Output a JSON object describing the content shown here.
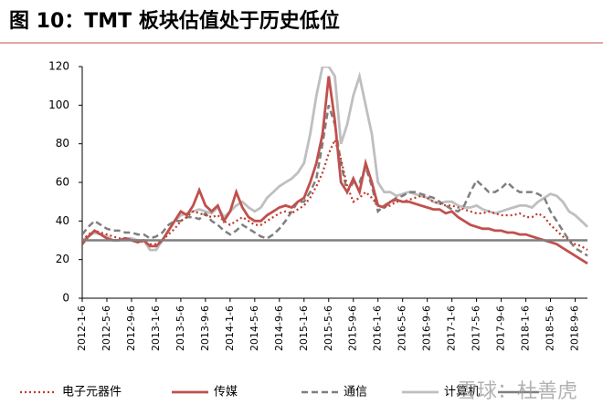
{
  "chart_data": {
    "type": "line",
    "title": "图 10：TMT 板块估值处于历史低位",
    "watermark": "雪球：杜善虎",
    "categories": [
      "2012-1-6",
      null,
      null,
      null,
      "2012-5-6",
      null,
      null,
      null,
      "2012-9-6",
      null,
      null,
      null,
      "2013-1-6",
      null,
      null,
      null,
      "2013-5-6",
      null,
      null,
      null,
      "2013-9-6",
      null,
      null,
      null,
      "2014-1-6",
      null,
      null,
      null,
      "2014-5-6",
      null,
      null,
      null,
      "2014-9-6",
      null,
      null,
      null,
      "2015-1-6",
      null,
      null,
      null,
      "2015-5-6",
      null,
      null,
      null,
      "2015-9-6",
      null,
      null,
      null,
      "2016-1-6",
      null,
      null,
      null,
      "2016-5-6",
      null,
      null,
      null,
      "2016-9-6",
      null,
      null,
      null,
      "2017-1-6",
      null,
      null,
      null,
      "2017-5-6",
      null,
      null,
      null,
      "2017-9-6",
      null,
      null,
      null,
      "2018-1-6",
      null,
      null,
      null,
      "2018-5-6",
      null,
      null,
      null,
      "2018-9-6",
      null,
      null
    ],
    "series": [
      {
        "name": "电子元器件",
        "color": "#c0392b",
        "style": "dotted",
        "values": [
          30,
          33,
          35,
          34,
          33,
          32,
          31,
          31,
          30,
          30,
          29,
          28,
          28,
          30,
          33,
          36,
          40,
          42,
          45,
          44,
          43,
          42,
          43,
          40,
          38,
          40,
          42,
          40,
          38,
          38,
          40,
          42,
          44,
          45,
          44,
          46,
          48,
          52,
          58,
          65,
          75,
          82,
          72,
          58,
          50,
          52,
          55,
          52,
          48,
          47,
          48,
          50,
          50,
          51,
          52,
          53,
          52,
          50,
          49,
          48,
          48,
          47,
          46,
          45,
          44,
          44,
          45,
          44,
          43,
          43,
          43,
          44,
          42,
          42,
          44,
          42,
          38,
          35,
          32,
          30,
          28,
          27,
          25
        ]
      },
      {
        "name": "传媒",
        "color": "#c0504d",
        "style": "solid",
        "values": [
          28,
          32,
          35,
          33,
          31,
          30,
          30,
          31,
          30,
          29,
          30,
          27,
          27,
          30,
          35,
          40,
          45,
          43,
          48,
          56,
          48,
          45,
          48,
          40,
          45,
          55,
          47,
          42,
          40,
          40,
          43,
          45,
          47,
          48,
          47,
          50,
          52,
          60,
          70,
          85,
          115,
          92,
          60,
          55,
          62,
          55,
          70,
          60,
          48,
          47,
          50,
          51,
          50,
          50,
          49,
          48,
          47,
          46,
          46,
          44,
          45,
          42,
          40,
          38,
          37,
          36,
          36,
          35,
          35,
          34,
          34,
          33,
          33,
          32,
          31,
          30,
          29,
          28,
          26,
          24,
          22,
          20,
          18
        ]
      },
      {
        "name": "通信",
        "color": "#7f7f7f",
        "style": "dashed",
        "values": [
          33,
          37,
          40,
          38,
          36,
          35,
          35,
          34,
          34,
          33,
          33,
          31,
          32,
          34,
          38,
          40,
          40,
          42,
          42,
          41,
          44,
          40,
          38,
          35,
          33,
          35,
          38,
          36,
          34,
          32,
          31,
          33,
          36,
          40,
          45,
          50,
          50,
          55,
          62,
          80,
          100,
          90,
          70,
          55,
          60,
          60,
          68,
          58,
          45,
          48,
          50,
          52,
          53,
          55,
          55,
          54,
          53,
          52,
          50,
          48,
          46,
          45,
          48,
          55,
          61,
          58,
          55,
          55,
          57,
          60,
          57,
          55,
          55,
          55,
          54,
          52,
          45,
          40,
          35,
          30,
          26,
          24,
          22
        ]
      },
      {
        "name": "计算机",
        "color": "#bfbfbf",
        "style": "solid",
        "values": [
          30,
          32,
          34,
          33,
          32,
          30,
          30,
          31,
          31,
          30,
          30,
          25,
          25,
          30,
          35,
          40,
          43,
          44,
          45,
          46,
          45,
          44,
          47,
          42,
          45,
          48,
          50,
          47,
          45,
          47,
          52,
          55,
          58,
          60,
          62,
          65,
          70,
          85,
          105,
          120,
          120,
          115,
          80,
          90,
          105,
          115,
          100,
          85,
          60,
          55,
          55,
          53,
          54,
          55,
          54,
          53,
          52,
          50,
          49,
          50,
          50,
          48,
          47,
          47,
          48,
          46,
          45,
          44,
          45,
          46,
          47,
          48,
          48,
          47,
          50,
          52,
          54,
          53,
          50,
          45,
          43,
          40,
          37
        ]
      }
    ],
    "reference_line": {
      "value": 30,
      "color": "#7f7f7f"
    },
    "ylim": [
      0,
      120
    ],
    "yticks": [
      0,
      20,
      40,
      60,
      80,
      100,
      120
    ]
  }
}
